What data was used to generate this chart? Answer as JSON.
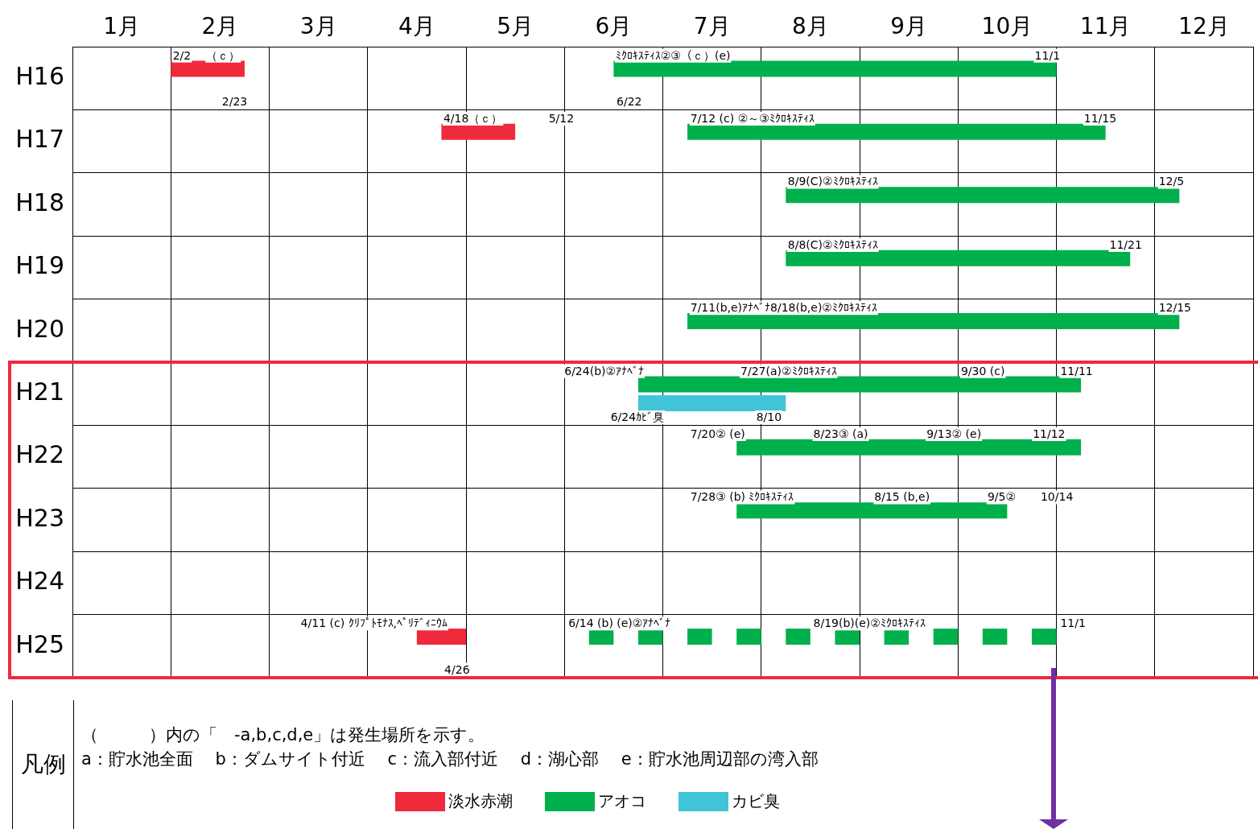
{
  "chart_data": {
    "type": "bar",
    "orientation": "horizontal",
    "legend_title": "凡例",
    "legend": "bottom",
    "grid": true,
    "categories": [
      "H16",
      "H17",
      "H18",
      "H19",
      "H20",
      "H21",
      "H22",
      "H23",
      "H24",
      "H25"
    ],
    "xlim": [
      0,
      12
    ],
    "xticks": [
      {
        "value": 0.5,
        "label": "1月"
      },
      {
        "value": 1,
        "label": null
      },
      {
        "value": 1.5,
        "label": "2月"
      },
      {
        "value": 2,
        "label": null
      },
      {
        "value": 2.5,
        "label": "3月"
      },
      {
        "value": 3,
        "label": null
      },
      {
        "value": 3.5,
        "label": "4月"
      },
      {
        "value": 4,
        "label": null
      },
      {
        "value": 4.5,
        "label": "5月"
      },
      {
        "value": 5,
        "label": null
      },
      {
        "value": 5.5,
        "label": "6月"
      },
      {
        "value": 6,
        "label": null
      },
      {
        "value": 6.5,
        "label": "7月"
      },
      {
        "value": 7,
        "label": null
      },
      {
        "value": 7.5,
        "label": "8月"
      },
      {
        "value": 8,
        "label": null
      },
      {
        "value": 8.5,
        "label": "9月"
      },
      {
        "value": 9,
        "label": null
      },
      {
        "value": 9.5,
        "label": "10月"
      },
      {
        "value": 10,
        "label": null
      },
      {
        "value": 10.5,
        "label": "11月"
      },
      {
        "value": 11,
        "label": null
      },
      {
        "value": 11.5,
        "label": "12月"
      },
      {
        "value": 12,
        "label": null
      }
    ],
    "series": [
      {
        "name": "淡水赤潮",
        "color": "#ee2a3c",
        "values": [
          0.75,
          0.75,
          null,
          null,
          null,
          null,
          null,
          null,
          null,
          0.5
        ],
        "base": [
          1.0,
          3.75,
          null,
          null,
          null,
          null,
          null,
          null,
          null,
          3.5
        ]
      },
      {
        "name": "アオコ",
        "color": "#00b04c",
        "values": [
          4.5,
          4.25,
          4.0,
          3.5,
          5.0,
          4.5,
          3.5,
          2.75,
          null,
          0.25
        ],
        "base": [
          5.5,
          6.25,
          7.25,
          7.25,
          6.25,
          5.75,
          6.75,
          6.75,
          null,
          5.25
        ]
      },
      {
        "name": "カビ臭",
        "color": "#41c4d8",
        "values": [
          null,
          null,
          null,
          null,
          null,
          1.5,
          null,
          null,
          null,
          null
        ],
        "base": [
          null,
          null,
          null,
          null,
          null,
          5.75,
          null,
          null,
          null,
          null
        ]
      },
      {
        "color": "#00b04c",
        "values": [
          null,
          null,
          null,
          null,
          null,
          null,
          null,
          null,
          null,
          0.25
        ],
        "base": [
          null,
          null,
          null,
          null,
          null,
          null,
          null,
          null,
          null,
          5.75
        ]
      },
      {
        "color": "#00b04c",
        "values": [
          null,
          null,
          null,
          null,
          null,
          null,
          null,
          null,
          null,
          0.25
        ],
        "base": [
          null,
          null,
          null,
          null,
          null,
          null,
          null,
          null,
          null,
          6.25
        ]
      },
      {
        "color": "#00b04c",
        "values": [
          null,
          null,
          null,
          null,
          null,
          null,
          null,
          null,
          null,
          0.25
        ],
        "base": [
          null,
          null,
          null,
          null,
          null,
          null,
          null,
          null,
          null,
          6.75
        ]
      },
      {
        "color": "#00b04c",
        "values": [
          null,
          null,
          null,
          null,
          null,
          null,
          null,
          null,
          null,
          0.25
        ],
        "base": [
          null,
          null,
          null,
          null,
          null,
          null,
          null,
          null,
          null,
          7.25
        ]
      },
      {
        "color": "#00b04c",
        "values": [
          null,
          null,
          null,
          null,
          null,
          null,
          null,
          null,
          null,
          0.25
        ],
        "base": [
          null,
          null,
          null,
          null,
          null,
          null,
          null,
          null,
          null,
          7.75
        ]
      },
      {
        "color": "#00b04c",
        "values": [
          null,
          null,
          null,
          null,
          null,
          null,
          null,
          null,
          null,
          0.25
        ],
        "base": [
          null,
          null,
          null,
          null,
          null,
          null,
          null,
          null,
          null,
          8.25
        ]
      },
      {
        "color": "#00b04c",
        "values": [
          null,
          null,
          null,
          null,
          null,
          null,
          null,
          null,
          null,
          0.25
        ],
        "base": [
          null,
          null,
          null,
          null,
          null,
          null,
          null,
          null,
          null,
          8.75
        ]
      },
      {
        "color": "#00b04c",
        "values": [
          null,
          null,
          null,
          null,
          null,
          null,
          null,
          null,
          null,
          0.25
        ],
        "base": [
          null,
          null,
          null,
          null,
          null,
          null,
          null,
          null,
          null,
          9.25
        ]
      },
      {
        "color": "#00b04c",
        "values": [
          null,
          null,
          null,
          null,
          null,
          null,
          null,
          null,
          null,
          0.25
        ],
        "base": [
          null,
          null,
          null,
          null,
          null,
          null,
          null,
          null,
          null,
          9.75
        ]
      }
    ],
    "annotations": [
      {
        "text": "（ｃ）",
        "x": 1.36,
        "y": "H16"
      },
      {
        "text": "2/2",
        "x": 1.02,
        "y": "H16"
      },
      {
        "text": "2/23",
        "x": 1.52,
        "y": "H16"
      },
      {
        "text": "ﾐｸﾛｷｽﾃｨｽ②③（ｃ）(e)",
        "x": 5.52,
        "y": "H16"
      },
      {
        "text": "6/22",
        "x": 5.53,
        "y": "H16"
      },
      {
        "text": "11/1",
        "x": 9.78,
        "y": "H16"
      },
      {
        "text": "4/18（ｃ）",
        "x": 3.77,
        "y": "H17"
      },
      "5/12",
      {
        "text": "7/12 (c) ②～③ﾐｸﾛｷｽﾃｨｽ",
        "x": 6.28,
        "y": "H17"
      },
      {
        "text": "11/15",
        "x": 10.28,
        "y": "H17"
      },
      {
        "text": "8/9(C)②ﾐｸﾛｷｽﾃｨｽ",
        "x": 7.27,
        "y": "H18"
      },
      {
        "text": "12/5",
        "x": 11.04,
        "y": "H18"
      },
      {
        "text": "8/8(C)②ﾐｸﾛｷｽﾃｨｽ",
        "x": 7.27,
        "y": "H19"
      },
      {
        "text": "11/21",
        "x": 10.54,
        "y": "H19"
      },
      {
        "text": "7/11(b,e)ｱﾅﾍﾞﾅ8/18(b,e)②ﾐｸﾛｷｽﾃｨｽ",
        "x": 6.28,
        "y": "H20"
      },
      {
        "text": "12/15",
        "x": 11.04,
        "y": "H20"
      },
      "6/24(b)②ｱﾅﾍﾞﾅ",
      {
        "text": "7/27(a)②ﾐｸﾛｷｽﾃｨｽ",
        "x": 6.79,
        "y": "H21"
      },
      {
        "text": "9/30 (c)",
        "x": 9.03,
        "y": "H21"
      },
      {
        "text": "11/11",
        "x": 10.04,
        "y": "H21"
      },
      "6/24ｶﾋﾞ臭",
      {
        "text": "8/10",
        "x": 6.95,
        "y": "H21"
      },
      "7/20② (e)",
      {
        "text": "8/23③ (a)",
        "x": 7.53,
        "y": "H22"
      },
      {
        "text": "9/13② (e)",
        "x": 8.68,
        "y": "H22"
      },
      {
        "text": "11/12",
        "x": 9.76,
        "y": "H22"
      },
      "7/28③ (b) ﾐｸﾛｷｽﾃｨｽ",
      {
        "text": "8/15 (b,e)",
        "x": 8.15,
        "y": "H23"
      },
      "9/5②",
      "10/14",
      "4/11 (c) ｸﾘﾌﾟﾄﾓﾅｽ,ﾍﾟﾘﾃﾞｨﾆｳﾑ",
      "4/26",
      "6/14 (b) (e)②ｱﾅﾍﾞﾅ",
      "8/19(b)(e)②ﾐｸﾛｷｽﾃｨｽ",
      "11/1",
      "（　　　）内の「　-a,b,c,d,e」は発生場所を示す。",
      "a：貯水池全面　 b：ダムサイト付近　 c：流入部付近　 d：湖心部　 e：貯水池周辺部の湾入部"
    ]
  }
}
